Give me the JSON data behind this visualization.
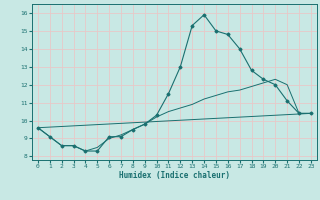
{
  "xlabel": "Humidex (Indice chaleur)",
  "xlim": [
    -0.5,
    23.5
  ],
  "ylim": [
    7.8,
    16.5
  ],
  "yticks": [
    8,
    9,
    10,
    11,
    12,
    13,
    14,
    15,
    16
  ],
  "xticks": [
    0,
    1,
    2,
    3,
    4,
    5,
    6,
    7,
    8,
    9,
    10,
    11,
    12,
    13,
    14,
    15,
    16,
    17,
    18,
    19,
    20,
    21,
    22,
    23
  ],
  "bg_color": "#c8e8e4",
  "grid_color": "#e8c8c8",
  "line_color": "#1a7070",
  "line1_x": [
    0,
    1,
    2,
    3,
    4,
    5,
    6,
    7,
    8,
    9,
    10,
    11,
    12,
    13,
    14,
    15,
    16,
    17,
    18,
    19,
    20,
    21,
    22,
    23
  ],
  "line1_y": [
    9.6,
    9.1,
    8.6,
    8.6,
    8.3,
    8.3,
    9.1,
    9.1,
    9.5,
    9.8,
    10.3,
    11.5,
    13.0,
    15.3,
    15.9,
    15.0,
    14.8,
    14.0,
    12.8,
    12.3,
    12.0,
    11.1,
    10.4,
    10.4
  ],
  "line2_x": [
    0,
    1,
    2,
    3,
    4,
    5,
    6,
    7,
    8,
    9,
    10,
    11,
    12,
    13,
    14,
    15,
    16,
    17,
    18,
    19,
    20,
    21,
    22,
    23
  ],
  "line2_y": [
    9.6,
    9.1,
    8.6,
    8.6,
    8.3,
    8.5,
    9.0,
    9.2,
    9.5,
    9.8,
    10.2,
    10.5,
    10.7,
    10.9,
    11.2,
    11.4,
    11.6,
    11.7,
    11.9,
    12.1,
    12.3,
    12.0,
    10.4,
    10.4
  ],
  "line3_x": [
    0,
    23
  ],
  "line3_y": [
    9.6,
    10.4
  ]
}
